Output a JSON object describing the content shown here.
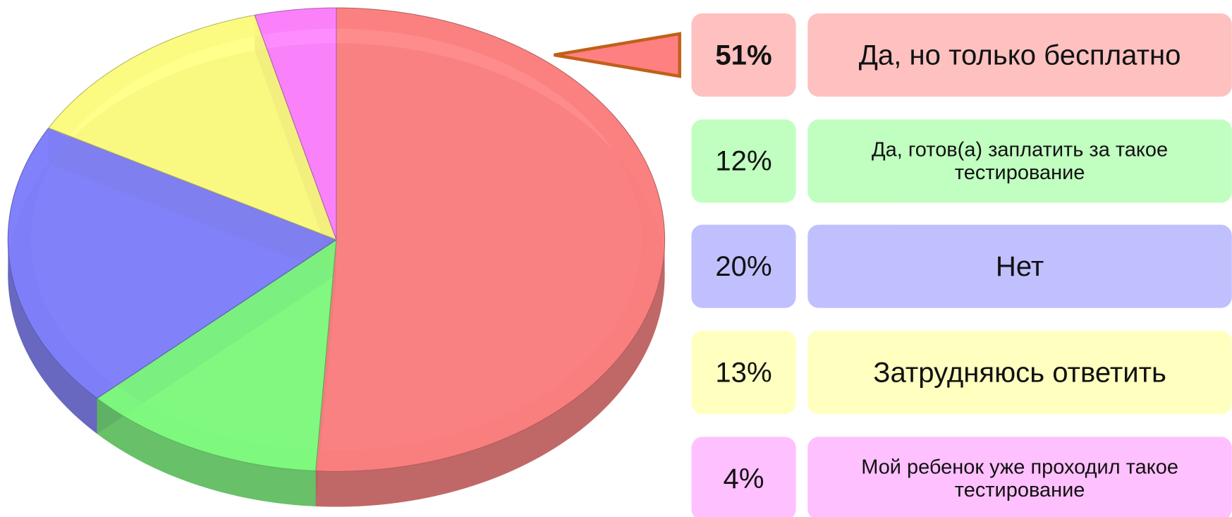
{
  "chart_data": {
    "type": "pie",
    "categories": [
      "Да, но только бесплатно",
      "Да, готов(а) заплатить за такое тестирование",
      "Нет",
      "Затрудняюсь ответить",
      "Мой ребенок уже проходил такое тестирование"
    ],
    "values": [
      51,
      12,
      20,
      13,
      4
    ],
    "value_labels": [
      "51%",
      "12%",
      "20%",
      "13%",
      "4%"
    ],
    "colors": [
      "#ff8080",
      "#80ff80",
      "#8080ff",
      "#ffff80",
      "#ff80ff"
    ]
  }
}
